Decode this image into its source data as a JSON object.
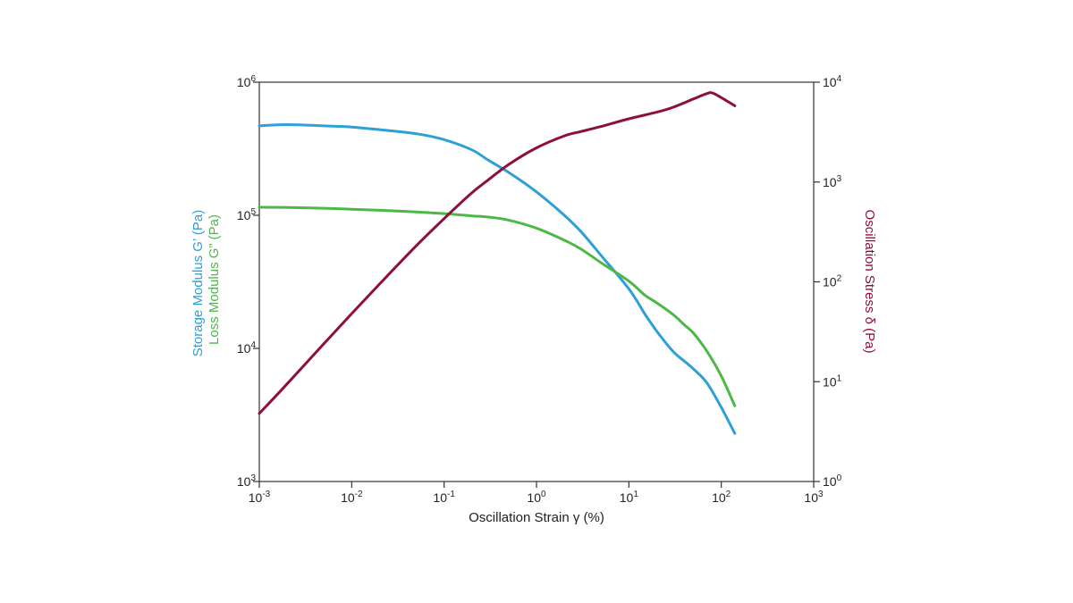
{
  "chart_data": {
    "type": "line",
    "title": "",
    "xlabel": "Oscillation Strain γ (%)",
    "ylabel_left_1": "Storage Modulus G’ (Pa)",
    "ylabel_left_2": "Loss Modulus G” (Pa)",
    "ylabel_right": "Oscillation Stress δ (Pa)",
    "x_scale": "log",
    "y_left_scale": "log",
    "y_right_scale": "log",
    "xlim": [
      0.001,
      1000
    ],
    "ylim_left": [
      1000,
      1000000
    ],
    "ylim_right": [
      1,
      10000
    ],
    "grid": false,
    "legend": "none",
    "x_ticks": [
      {
        "mant": "10",
        "exp": "-3"
      },
      {
        "mant": "10",
        "exp": "-2"
      },
      {
        "mant": "10",
        "exp": "-1"
      },
      {
        "mant": "10",
        "exp": "0"
      },
      {
        "mant": "10",
        "exp": "1"
      },
      {
        "mant": "10",
        "exp": "2"
      },
      {
        "mant": "10",
        "exp": "3"
      }
    ],
    "y_left_ticks": [
      {
        "mant": "10",
        "exp": "3"
      },
      {
        "mant": "10",
        "exp": "4"
      },
      {
        "mant": "10",
        "exp": "5"
      },
      {
        "mant": "10",
        "exp": "6"
      }
    ],
    "y_right_ticks": [
      {
        "mant": "10",
        "exp": "0"
      },
      {
        "mant": "10",
        "exp": "1"
      },
      {
        "mant": "10",
        "exp": "2"
      },
      {
        "mant": "10",
        "exp": "3"
      },
      {
        "mant": "10",
        "exp": "4"
      }
    ],
    "series": [
      {
        "axis": "left",
        "color": "#2e9fd8",
        "x": [
          0.001,
          0.002,
          0.005,
          0.01,
          0.02,
          0.05,
          0.1,
          0.2,
          0.3,
          0.5,
          1,
          2,
          3,
          5,
          10,
          15,
          20,
          30,
          40,
          50,
          70,
          100,
          140
        ],
        "y": [
          470000,
          480000,
          470000,
          460000,
          440000,
          410000,
          370000,
          310000,
          260000,
          210000,
          150000,
          100000,
          76000,
          50000,
          28000,
          18000,
          13500,
          9500,
          8000,
          7000,
          5500,
          3600,
          2300
        ]
      },
      {
        "axis": "left",
        "color": "#4db848",
        "x": [
          0.001,
          0.002,
          0.005,
          0.01,
          0.02,
          0.05,
          0.1,
          0.2,
          0.3,
          0.5,
          1,
          2,
          3,
          5,
          10,
          15,
          20,
          30,
          40,
          50,
          70,
          100,
          140
        ],
        "y": [
          115000,
          114500,
          113000,
          111000,
          109000,
          106000,
          103000,
          99000,
          97000,
          92000,
          80000,
          65000,
          56000,
          44000,
          32000,
          25000,
          22000,
          18000,
          15000,
          13000,
          9500,
          6200,
          3700
        ]
      },
      {
        "axis": "right",
        "color": "#8e0f3e",
        "x": [
          0.001,
          0.002,
          0.005,
          0.01,
          0.02,
          0.05,
          0.1,
          0.2,
          0.3,
          0.5,
          1,
          2,
          3,
          5,
          10,
          20,
          30,
          50,
          70,
          80,
          100,
          140
        ],
        "y": [
          4.8,
          9.5,
          24,
          48,
          95,
          230,
          430,
          780,
          1050,
          1500,
          2200,
          2900,
          3200,
          3600,
          4300,
          5000,
          5600,
          6800,
          7700,
          7800,
          7000,
          5800
        ]
      }
    ]
  }
}
